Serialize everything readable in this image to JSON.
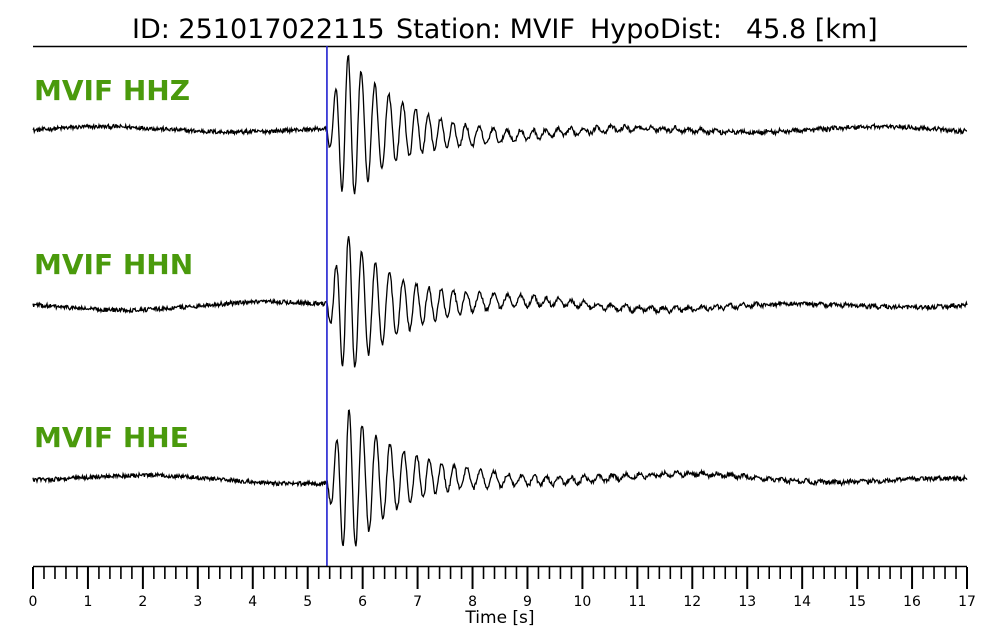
{
  "header": {
    "id_text": "ID: 251017022115",
    "station_text": "Station: MVIF",
    "hypodist_text": "HypoDist:",
    "hypodist_value_text": "45.8 [km]"
  },
  "colors": {
    "label": "#4a9a0c",
    "trace": "#000000",
    "pick_line": "#1f1fcf",
    "rule": "#000000"
  },
  "chart_data": {
    "type": "line",
    "title": "",
    "xlabel": "Time [s]",
    "ylabel": "",
    "xlim": [
      0,
      17
    ],
    "x_ticks": [
      0,
      1,
      2,
      3,
      4,
      5,
      6,
      7,
      8,
      9,
      10,
      11,
      12,
      13,
      14,
      15,
      16,
      17
    ],
    "minor_tick_step": 0.2,
    "pick_time_s": 5.35,
    "pick_line_color": "#1f1fcf",
    "legend": "none",
    "grid": false,
    "series": [
      {
        "name": "MVIF HHZ",
        "label": "MVIF HHZ",
        "peak_amplitude": 0.95,
        "noise_amplitude": 0.05
      },
      {
        "name": "MVIF HHN",
        "label": "MVIF HHN",
        "peak_amplitude": 0.9,
        "noise_amplitude": 0.05
      },
      {
        "name": "MVIF HHE",
        "label": "MVIF HHE",
        "peak_amplitude": 0.95,
        "noise_amplitude": 0.05
      }
    ]
  }
}
